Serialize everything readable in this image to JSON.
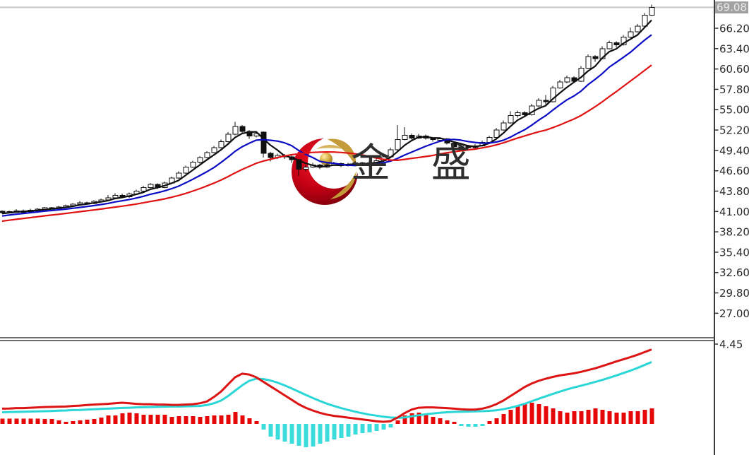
{
  "window": {
    "background": "#ffffff"
  },
  "price_axis": {
    "axis_color": "#3c3c3c",
    "label_color": "#2b2b2b",
    "ticks": [
      {
        "v": 66.2,
        "label": "66.20"
      },
      {
        "v": 63.4,
        "label": "63.40"
      },
      {
        "v": 60.6,
        "label": "60.60"
      },
      {
        "v": 57.8,
        "label": "57.80"
      },
      {
        "v": 55.0,
        "label": "55.00"
      },
      {
        "v": 52.2,
        "label": "52.20"
      },
      {
        "v": 49.4,
        "label": "49.40"
      },
      {
        "v": 46.6,
        "label": "46.60"
      },
      {
        "v": 43.8,
        "label": "43.80"
      },
      {
        "v": 41.0,
        "label": "41.00"
      },
      {
        "v": 38.2,
        "label": "38.20"
      },
      {
        "v": 35.4,
        "label": "35.40"
      },
      {
        "v": 32.6,
        "label": "32.60"
      },
      {
        "v": 29.8,
        "label": "29.80"
      },
      {
        "v": 27.0,
        "label": "27.00"
      }
    ],
    "last_price_label": "69.08",
    "last_price_value": 69.08,
    "badge_bg": "#a2a2a2",
    "badge_text_color": "#ebebeb",
    "price_line_color": "#c6c6c6"
  },
  "macd_axis": {
    "tick_label": "4.45",
    "tick_value": 4.45
  },
  "watermark": {
    "text": "金 盛",
    "text_color": "#2e2e2e",
    "crescent_red": "#b8000f",
    "gold": "#c49b3a"
  },
  "chart_data": {
    "type": "candlestick_with_macd",
    "x_count": 93,
    "x_labels_visible": false,
    "price_panel": {
      "grid": false,
      "tick_step": 2.8,
      "visible_range": [
        23.6,
        70.4
      ],
      "up_style": "hollow-white",
      "down_style": "filled-black",
      "moving_averages": [
        {
          "name": "ma-short",
          "window": 4,
          "color": "#101010"
        },
        {
          "name": "ma-medium",
          "window": 9,
          "color": "#0b0bc4"
        },
        {
          "name": "ma-long",
          "window": 20,
          "color": "#e01212"
        }
      ],
      "candles": [
        [
          41.05,
          41.2,
          40.7,
          40.9
        ],
        [
          40.9,
          41.15,
          40.8,
          41.0
        ],
        [
          41.0,
          41.3,
          40.9,
          41.1
        ],
        [
          41.1,
          41.25,
          40.85,
          41.0
        ],
        [
          41.0,
          41.35,
          40.9,
          41.2
        ],
        [
          41.2,
          41.45,
          41.05,
          41.3
        ],
        [
          41.3,
          41.6,
          41.2,
          41.5
        ],
        [
          41.5,
          41.6,
          41.25,
          41.4
        ],
        [
          41.4,
          41.75,
          41.3,
          41.6
        ],
        [
          41.6,
          41.95,
          41.5,
          41.8
        ],
        [
          41.8,
          42.15,
          41.7,
          42.0
        ],
        [
          42.0,
          42.45,
          41.9,
          42.2
        ],
        [
          42.2,
          42.35,
          41.95,
          42.1
        ],
        [
          42.1,
          42.55,
          42.0,
          42.4
        ],
        [
          42.4,
          42.8,
          42.3,
          42.6
        ],
        [
          42.6,
          43.25,
          42.5,
          42.9
        ],
        [
          42.9,
          43.5,
          42.8,
          43.2
        ],
        [
          43.2,
          43.45,
          42.85,
          43.0
        ],
        [
          43.0,
          43.6,
          42.9,
          43.4
        ],
        [
          43.4,
          44.0,
          43.3,
          43.8
        ],
        [
          43.8,
          44.55,
          43.7,
          44.3
        ],
        [
          44.3,
          44.9,
          44.2,
          44.7
        ],
        [
          44.7,
          44.85,
          44.1,
          44.3
        ],
        [
          44.3,
          45.1,
          44.2,
          44.9
        ],
        [
          44.9,
          45.8,
          44.8,
          45.6
        ],
        [
          45.6,
          46.5,
          45.5,
          46.3
        ],
        [
          46.3,
          47.3,
          46.2,
          47.1
        ],
        [
          47.1,
          48.0,
          47.0,
          47.8
        ],
        [
          47.8,
          48.6,
          47.6,
          48.4
        ],
        [
          48.4,
          49.3,
          48.3,
          49.1
        ],
        [
          49.1,
          50.0,
          49.0,
          49.8
        ],
        [
          49.8,
          50.9,
          49.7,
          50.6
        ],
        [
          50.6,
          51.9,
          50.5,
          51.6
        ],
        [
          51.6,
          53.3,
          51.5,
          52.7
        ],
        [
          52.7,
          52.9,
          51.7,
          52.0
        ],
        [
          52.0,
          52.2,
          51.0,
          51.4
        ],
        [
          51.4,
          52.0,
          51.2,
          51.7
        ],
        [
          51.9,
          52.0,
          48.4,
          49.0
        ],
        [
          49.0,
          49.2,
          47.9,
          48.4
        ],
        [
          48.4,
          48.95,
          48.2,
          48.7
        ],
        [
          48.7,
          48.9,
          48.2,
          48.5
        ],
        [
          48.5,
          48.7,
          47.7,
          48.1
        ],
        [
          48.1,
          48.2,
          45.9,
          46.8
        ],
        [
          46.8,
          47.4,
          46.5,
          47.1
        ],
        [
          47.1,
          47.7,
          47.0,
          47.4
        ],
        [
          47.4,
          47.55,
          46.8,
          47.1
        ],
        [
          47.1,
          47.65,
          47.0,
          47.4
        ],
        [
          47.4,
          47.85,
          47.3,
          47.6
        ],
        [
          47.6,
          47.75,
          47.1,
          47.3
        ],
        [
          47.3,
          47.7,
          47.2,
          47.5
        ],
        [
          47.5,
          47.95,
          47.4,
          47.7
        ],
        [
          47.7,
          47.85,
          47.3,
          47.5
        ],
        [
          47.5,
          47.95,
          47.4,
          47.7
        ],
        [
          47.7,
          48.25,
          47.6,
          48.0
        ],
        [
          48.0,
          48.75,
          47.9,
          48.5
        ],
        [
          48.5,
          49.8,
          48.4,
          49.5
        ],
        [
          49.5,
          52.9,
          49.4,
          50.9
        ],
        [
          50.9,
          52.6,
          50.8,
          51.5
        ],
        [
          51.5,
          51.7,
          50.9,
          51.1
        ],
        [
          51.1,
          51.65,
          51.0,
          51.4
        ],
        [
          51.4,
          51.55,
          50.9,
          51.1
        ],
        [
          51.1,
          51.25,
          50.6,
          50.9
        ],
        [
          50.9,
          51.25,
          50.8,
          51.0
        ],
        [
          51.0,
          51.1,
          50.2,
          50.4
        ],
        [
          50.4,
          50.55,
          49.5,
          49.9
        ],
        [
          49.9,
          50.25,
          49.8,
          50.0
        ],
        [
          50.0,
          50.15,
          49.5,
          49.8
        ],
        [
          49.8,
          50.25,
          49.7,
          50.0
        ],
        [
          50.0,
          50.75,
          49.9,
          50.5
        ],
        [
          50.5,
          51.45,
          50.4,
          51.2
        ],
        [
          51.2,
          52.5,
          51.1,
          52.2
        ],
        [
          52.2,
          53.5,
          52.1,
          53.2
        ],
        [
          53.2,
          54.8,
          53.1,
          54.2
        ],
        [
          54.2,
          54.9,
          53.9,
          54.6
        ],
        [
          54.6,
          54.8,
          54.0,
          54.3
        ],
        [
          54.3,
          55.8,
          54.2,
          55.5
        ],
        [
          55.5,
          56.6,
          55.4,
          56.3
        ],
        [
          56.3,
          57.0,
          55.7,
          56.1
        ],
        [
          56.1,
          58.3,
          56.0,
          58.0
        ],
        [
          58.0,
          59.1,
          57.9,
          58.8
        ],
        [
          58.8,
          59.7,
          58.6,
          59.4
        ],
        [
          59.4,
          59.6,
          58.7,
          58.9
        ],
        [
          58.9,
          61.0,
          58.8,
          60.7
        ],
        [
          60.7,
          62.6,
          60.6,
          62.3
        ],
        [
          62.3,
          62.5,
          61.6,
          62.0
        ],
        [
          62.0,
          63.7,
          61.9,
          63.4
        ],
        [
          63.4,
          64.5,
          63.3,
          64.2
        ],
        [
          64.2,
          64.4,
          63.6,
          63.9
        ],
        [
          63.9,
          65.3,
          63.8,
          65.0
        ],
        [
          65.0,
          66.3,
          64.9,
          65.7
        ],
        [
          65.7,
          66.8,
          65.6,
          66.5
        ],
        [
          66.5,
          68.3,
          66.4,
          68.0
        ],
        [
          68.0,
          69.45,
          67.9,
          69.08
        ]
      ]
    },
    "macd_panel": {
      "tick": 4.45,
      "dif_color": "#dc1414",
      "dea_color": "#2ad6d6",
      "hist_up_color": "#e60808",
      "hist_down_color": "#3adcdc",
      "dif": [
        0.85,
        0.86,
        0.88,
        0.88,
        0.9,
        0.92,
        0.94,
        0.95,
        0.96,
        0.97,
        1.0,
        1.02,
        1.05,
        1.08,
        1.1,
        1.12,
        1.15,
        1.18,
        1.15,
        1.12,
        1.1,
        1.1,
        1.08,
        1.08,
        1.06,
        1.06,
        1.08,
        1.1,
        1.15,
        1.25,
        1.5,
        1.8,
        2.2,
        2.6,
        2.8,
        2.75,
        2.6,
        2.35,
        2.1,
        1.85,
        1.6,
        1.35,
        1.1,
        0.9,
        0.75,
        0.62,
        0.52,
        0.45,
        0.4,
        0.35,
        0.3,
        0.25,
        0.2,
        0.15,
        0.12,
        0.15,
        0.35,
        0.6,
        0.8,
        0.9,
        0.92,
        0.92,
        0.9,
        0.88,
        0.85,
        0.82,
        0.8,
        0.8,
        0.85,
        0.95,
        1.1,
        1.3,
        1.55,
        1.8,
        2.05,
        2.25,
        2.4,
        2.52,
        2.62,
        2.7,
        2.76,
        2.82,
        2.9,
        3.0,
        3.1,
        3.22,
        3.35,
        3.48,
        3.6,
        3.72,
        3.85,
        4.0,
        4.15
      ],
      "dea": [
        0.65,
        0.66,
        0.67,
        0.68,
        0.69,
        0.7,
        0.71,
        0.72,
        0.74,
        0.75,
        0.77,
        0.78,
        0.8,
        0.82,
        0.84,
        0.85,
        0.87,
        0.89,
        0.9,
        0.92,
        0.93,
        0.94,
        0.95,
        0.96,
        0.97,
        0.97,
        0.98,
        0.99,
        1.0,
        1.05,
        1.15,
        1.3,
        1.55,
        1.85,
        2.15,
        2.4,
        2.52,
        2.5,
        2.42,
        2.3,
        2.15,
        1.98,
        1.8,
        1.62,
        1.45,
        1.28,
        1.13,
        1.0,
        0.88,
        0.78,
        0.68,
        0.6,
        0.52,
        0.46,
        0.4,
        0.36,
        0.34,
        0.36,
        0.42,
        0.48,
        0.54,
        0.58,
        0.62,
        0.65,
        0.67,
        0.68,
        0.69,
        0.7,
        0.71,
        0.73,
        0.76,
        0.82,
        0.9,
        1.0,
        1.12,
        1.26,
        1.4,
        1.54,
        1.67,
        1.8,
        1.92,
        2.03,
        2.13,
        2.23,
        2.34,
        2.45,
        2.57,
        2.7,
        2.83,
        2.97,
        3.12,
        3.28,
        3.45
      ],
      "hist": [
        0.3,
        0.3,
        0.3,
        0.3,
        0.3,
        0.3,
        0.28,
        0.28,
        0.2,
        0.12,
        0.16,
        0.2,
        0.24,
        0.28,
        0.35,
        0.47,
        0.47,
        0.59,
        0.63,
        0.59,
        0.51,
        0.51,
        0.51,
        0.51,
        0.39,
        0.43,
        0.43,
        0.43,
        0.39,
        0.43,
        0.47,
        0.47,
        0.51,
        0.67,
        0.47,
        0.31,
        0.16,
        -0.31,
        -0.71,
        -0.87,
        -0.98,
        -1.1,
        -1.22,
        -1.3,
        -1.26,
        -1.1,
        -0.98,
        -0.87,
        -0.79,
        -0.71,
        -0.59,
        -0.51,
        -0.47,
        -0.39,
        -0.31,
        -0.2,
        0.2,
        0.47,
        0.59,
        0.63,
        0.51,
        0.39,
        0.31,
        0.2,
        0.12,
        -0.12,
        -0.16,
        -0.16,
        -0.12,
        0.16,
        0.31,
        0.55,
        0.79,
        0.98,
        1.1,
        1.18,
        1.1,
        0.98,
        0.87,
        0.71,
        0.63,
        0.71,
        0.71,
        0.79,
        0.87,
        0.79,
        0.71,
        0.63,
        0.63,
        0.71,
        0.71,
        0.79,
        0.87
      ]
    }
  }
}
